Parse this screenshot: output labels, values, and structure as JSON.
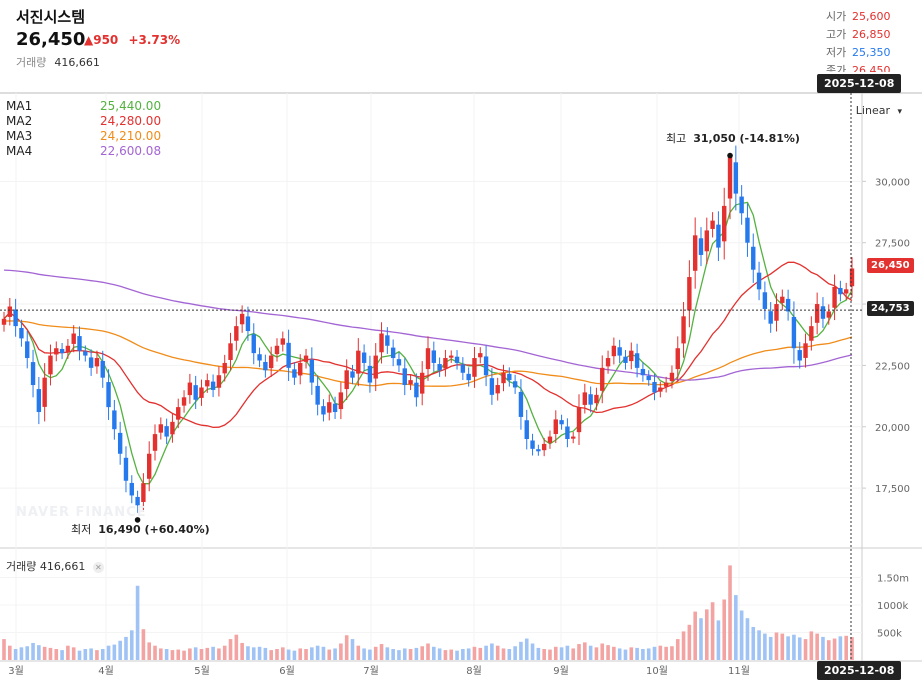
{
  "header": {
    "title": "서진시스템",
    "price": "26,450",
    "change": "▲950",
    "change_pct": "+3.73%",
    "volume_label": "거래량",
    "volume_value": "416,661"
  },
  "ohlc": [
    {
      "label": "시가",
      "value": "25,600",
      "color": "#e2312f"
    },
    {
      "label": "고가",
      "value": "26,850",
      "color": "#e2312f"
    },
    {
      "label": "저가",
      "value": "25,350",
      "color": "#2679ed"
    },
    {
      "label": "종가",
      "value": "26,450",
      "color": "#e2312f"
    }
  ],
  "ma_legend": [
    {
      "name": "MA1",
      "value": "25,440.00",
      "color": "#54b240"
    },
    {
      "name": "MA2",
      "value": "24,280.00",
      "color": "#e2312f"
    },
    {
      "name": "MA3",
      "value": "24,210.00",
      "color": "#f08c1a"
    },
    {
      "name": "MA4",
      "value": "22,600.08",
      "color": "#a365d4"
    }
  ],
  "crosshair_date": "2025-12-08",
  "scale_label": "Linear",
  "current_price_tag": "26,450",
  "crosshair_price_tag": "24,753",
  "watermark": "NAVER FINANCE",
  "high_annotation": {
    "prefix": "최고",
    "value": "31,050 (-14.81%)"
  },
  "low_annotation": {
    "prefix": "최저",
    "value": "16,490 (+60.40%)"
  },
  "volume_panel": {
    "label": "거래량",
    "value": "416,661"
  },
  "chart_data": {
    "type": "candlestick",
    "price_axis": {
      "ticks": [
        "30,000",
        "27,500",
        "25,000",
        "22,500",
        "20,000",
        "17,500"
      ],
      "range": [
        15100,
        33600
      ]
    },
    "volume_axis": {
      "ticks": [
        "1.50m",
        "1000k",
        "500k"
      ],
      "range": [
        0,
        2000000
      ]
    },
    "x_labels": [
      "3월",
      "4월",
      "5월",
      "6월",
      "7월",
      "8월",
      "9월",
      "10월",
      "11월"
    ],
    "current_price": 26450,
    "crosshair_price": 24753,
    "high": 31050,
    "low": 16490,
    "closes": [
      24400,
      24900,
      24100,
      23600,
      22800,
      21700,
      20600,
      22000,
      22900,
      23200,
      23000,
      23300,
      23800,
      23100,
      22900,
      22400,
      22800,
      22000,
      20800,
      19900,
      18900,
      17800,
      17200,
      16800,
      17700,
      18900,
      19700,
      20100,
      19600,
      20200,
      20800,
      21200,
      21800,
      21100,
      21600,
      21900,
      21500,
      22100,
      22600,
      23400,
      24100,
      24600,
      23900,
      23000,
      22700,
      22300,
      22900,
      23300,
      23600,
      22400,
      22000,
      22600,
      22900,
      21800,
      20900,
      20500,
      21000,
      20600,
      21400,
      22300,
      22000,
      23100,
      22600,
      21800,
      22900,
      23800,
      23300,
      22800,
      22500,
      21700,
      21900,
      21200,
      22200,
      23200,
      22600,
      22300,
      22800,
      22900,
      22600,
      22200,
      21900,
      22800,
      23000,
      22100,
      21300,
      21700,
      22200,
      21900,
      21600,
      20400,
      19500,
      19100,
      19000,
      19300,
      19600,
      20300,
      20100,
      19500,
      19600,
      20800,
      21400,
      20900,
      21300,
      22400,
      22800,
      23300,
      22900,
      22600,
      23100,
      22400,
      22100,
      21900,
      21400,
      21600,
      21800,
      22200,
      23200,
      24500,
      26100,
      27800,
      27000,
      28000,
      28400,
      27300,
      29000,
      31000,
      29500,
      28700,
      27500,
      26400,
      25600,
      24800,
      24200,
      25000,
      25300,
      24700,
      23200,
      22700,
      23400,
      24100,
      25000,
      24400,
      24700,
      25700,
      25400,
      25600,
      26450
    ],
    "volumes": [
      380000,
      260000,
      200000,
      230000,
      250000,
      310000,
      270000,
      240000,
      220000,
      200000,
      180000,
      260000,
      230000,
      170000,
      200000,
      210000,
      180000,
      200000,
      260000,
      280000,
      350000,
      420000,
      540000,
      1350000,
      560000,
      320000,
      260000,
      210000,
      200000,
      180000,
      190000,
      170000,
      210000,
      230000,
      200000,
      220000,
      240000,
      210000,
      260000,
      380000,
      460000,
      310000,
      250000,
      230000,
      240000,
      220000,
      180000,
      200000,
      230000,
      190000,
      170000,
      210000,
      200000,
      230000,
      260000,
      240000,
      190000,
      210000,
      300000,
      450000,
      380000,
      260000,
      210000,
      190000,
      240000,
      290000,
      230000,
      200000,
      180000,
      210000,
      200000,
      220000,
      250000,
      300000,
      240000,
      210000,
      180000,
      190000,
      170000,
      200000,
      210000,
      240000,
      220000,
      260000,
      300000,
      260000,
      210000,
      200000,
      250000,
      330000,
      390000,
      300000,
      220000,
      200000,
      190000,
      240000,
      230000,
      260000,
      210000,
      290000,
      320000,
      260000,
      230000,
      300000,
      270000,
      240000,
      210000,
      190000,
      230000,
      220000,
      200000,
      210000,
      240000,
      260000,
      240000,
      250000,
      380000,
      520000,
      640000,
      880000,
      760000,
      920000,
      1050000,
      720000,
      1100000,
      1720000,
      1180000,
      900000,
      760000,
      600000,
      540000,
      480000,
      420000,
      500000,
      480000,
      430000,
      460000,
      410000,
      380000,
      520000,
      480000,
      420000,
      360000,
      390000,
      430000,
      440000,
      416661
    ]
  }
}
